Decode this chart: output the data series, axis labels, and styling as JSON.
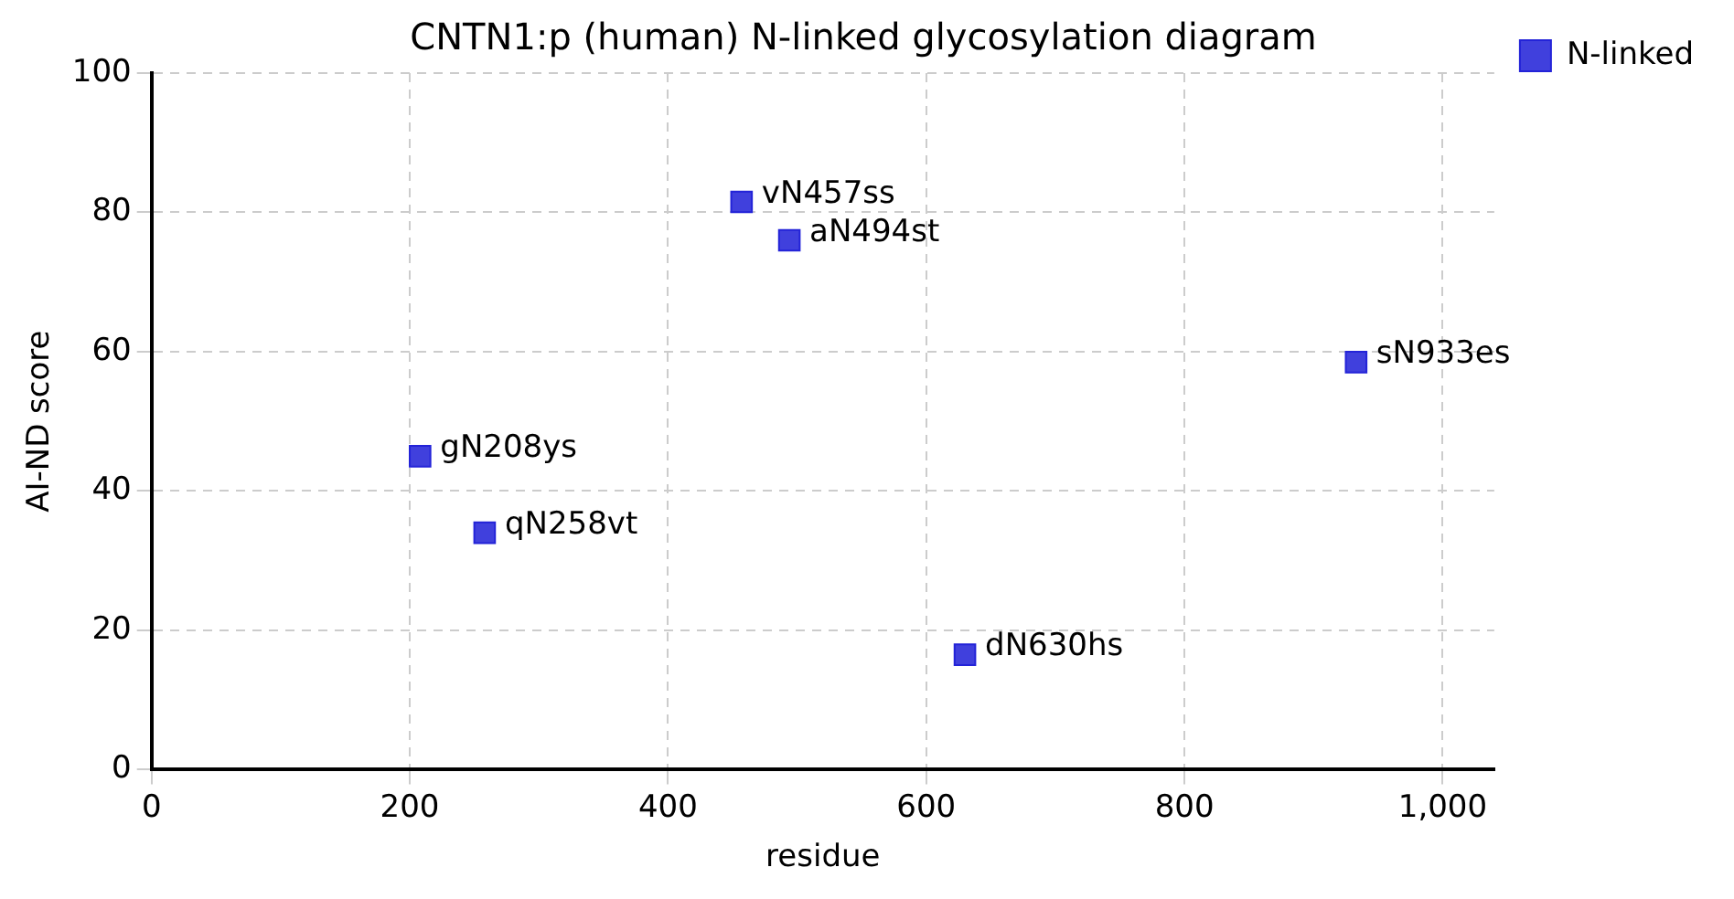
{
  "chart_data": {
    "type": "scatter",
    "title": "CNTN1:p (human) N-linked glycosylation diagram",
    "xlabel": "residue",
    "ylabel": "AI-ND score",
    "series": [
      {
        "name": "N-linked",
        "color": "#2323d8",
        "x": [
          208,
          258,
          457,
          494,
          630,
          933
        ],
        "values": [
          45,
          34,
          81.5,
          76,
          16.5,
          58.5
        ]
      }
    ],
    "annotations": [
      {
        "text": "gN208ys",
        "x": 208,
        "y": 45
      },
      {
        "text": "qN258vt",
        "x": 258,
        "y": 34
      },
      {
        "text": "vN457ss",
        "x": 457,
        "y": 81.5
      },
      {
        "text": "aN494st",
        "x": 494,
        "y": 76
      },
      {
        "text": "dN630hs",
        "x": 630,
        "y": 16.5
      },
      {
        "text": "sN933es",
        "x": 933,
        "y": 58.5
      }
    ],
    "xlim": [
      0,
      1040
    ],
    "xticks": [
      0,
      200,
      400,
      600,
      800,
      {
        "value": 1000,
        "label": "1,000"
      }
    ],
    "ylim": [
      0,
      100
    ],
    "yticks": [
      0,
      20,
      40,
      60,
      80,
      100
    ],
    "grid": true,
    "legend": "top right",
    "marker": "square"
  }
}
